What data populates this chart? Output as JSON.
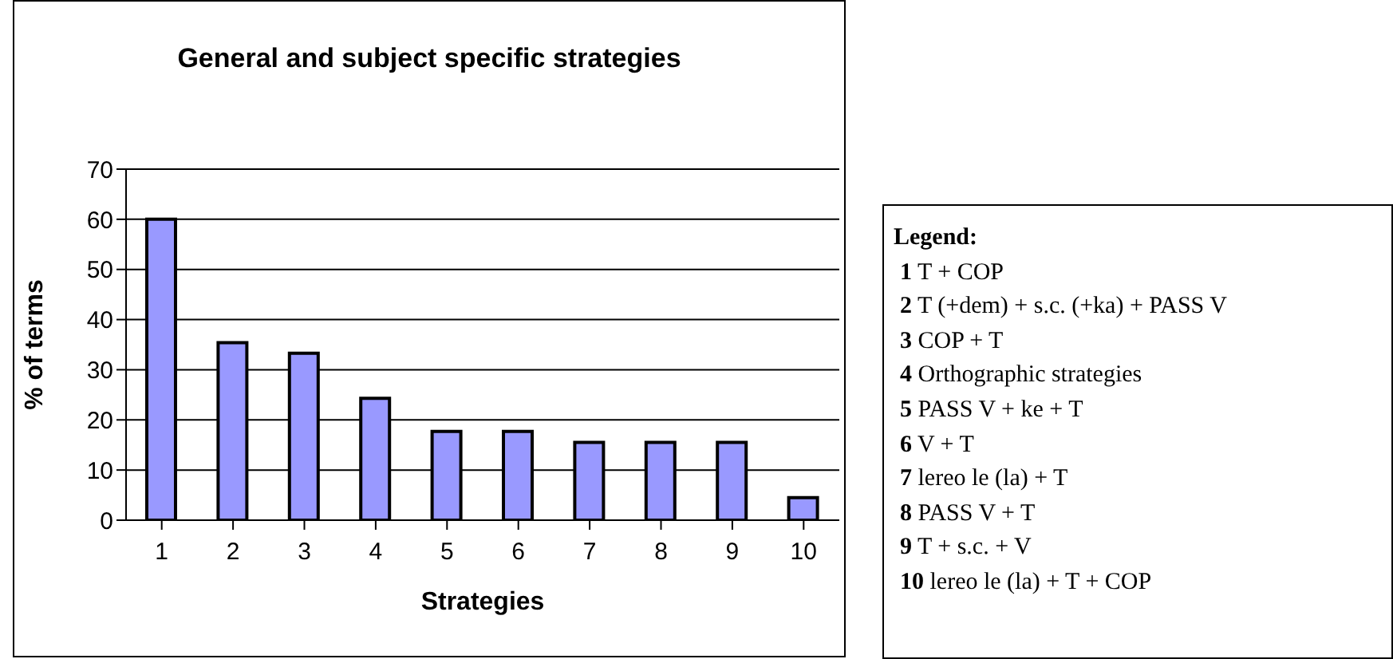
{
  "chart_data": {
    "type": "bar",
    "title": "General and subject specific strategies",
    "xlabel": "Strategies",
    "ylabel": "% of terms",
    "categories": [
      "1",
      "2",
      "3",
      "4",
      "5",
      "6",
      "7",
      "8",
      "9",
      "10"
    ],
    "values": [
      60,
      35.4,
      33.3,
      24.3,
      17.7,
      17.7,
      15.5,
      15.5,
      15.5,
      4.5
    ],
    "color": "#9999ff",
    "ylim": [
      0,
      70
    ],
    "yticks": [
      0,
      10,
      20,
      30,
      40,
      50,
      60,
      70
    ],
    "grid": "y",
    "annotations": [
      "Legend:",
      "1 T + COP",
      "2 T (+dem) + s.c. (+ka) + PASS V",
      "3 COP + T",
      "4 Orthographic strategies",
      "5 PASS V + ke + T",
      "6 V + T",
      "7 lereo le (la) + T",
      "8 PASS V + T",
      "9 T + s.c. + V",
      "10 lereo le (la) + T + COP"
    ]
  }
}
